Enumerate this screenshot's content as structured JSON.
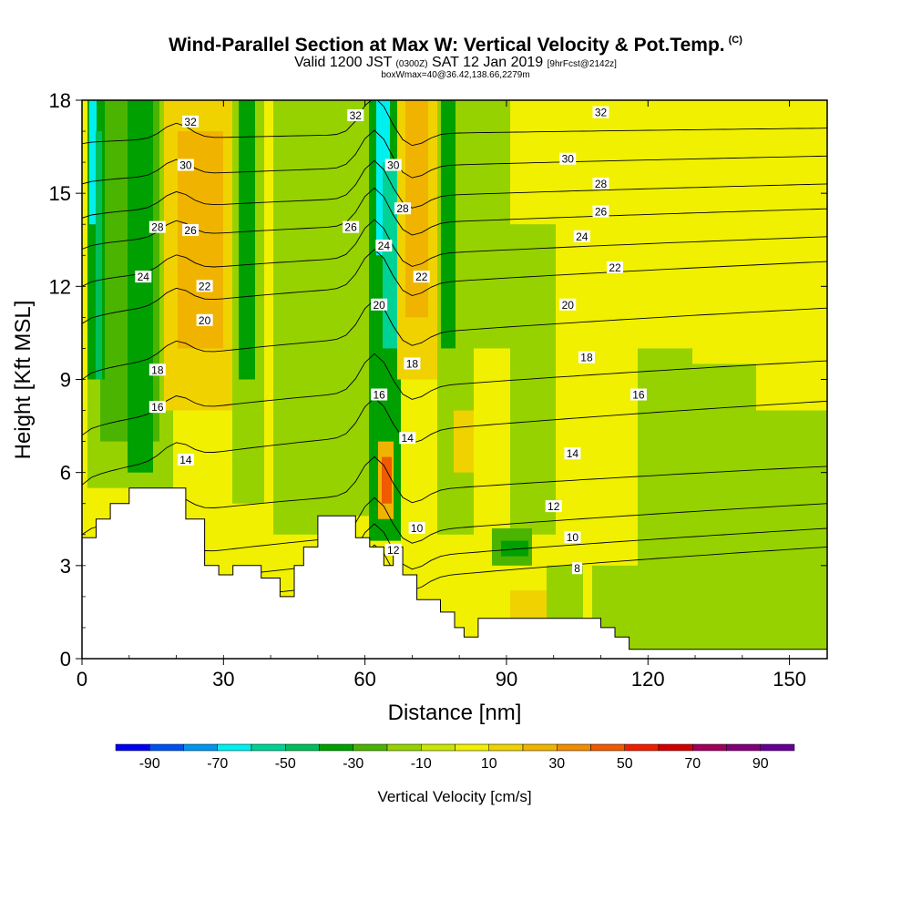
{
  "header": {
    "title": "Wind-Parallel Section at Max W: Vertical Velocity & Pot.Temp.",
    "copyright": "(C)",
    "valid_prefix": "Valid 1200 JST",
    "valid_zulu": "(0300Z)",
    "valid_date": "SAT 12 Jan 2019",
    "forecast": "[9hrFcst@2142z]",
    "box_info": "boxWmax=40@36.42,138.66,2279m"
  },
  "chart_data": {
    "type": "heatmap",
    "xlabel": "Distance [nm]",
    "ylabel": "Height [Kft MSL]",
    "xlim": [
      0,
      158
    ],
    "ylim": [
      0,
      18
    ],
    "x_ticks": [
      "0",
      "30",
      "60",
      "90",
      "120",
      "150"
    ],
    "y_ticks": [
      "0",
      "3",
      "6",
      "9",
      "12",
      "15",
      "18"
    ],
    "colorbar": {
      "title": "Vertical Velocity [cm/s]",
      "tick_labels": [
        "-90",
        "-70",
        "-50",
        "-30",
        "-10",
        "10",
        "30",
        "50",
        "70",
        "90"
      ],
      "colors": [
        "#0000f0",
        "#0050f0",
        "#0096f0",
        "#00f0f0",
        "#00d296",
        "#00be5a",
        "#00a000",
        "#4bb400",
        "#96d200",
        "#c8e600",
        "#f0f000",
        "#f0d200",
        "#f0b400",
        "#f08c00",
        "#f05a00",
        "#f01e00",
        "#d20000",
        "#a0005a",
        "#820078",
        "#640096"
      ]
    },
    "terrain": [
      [
        0,
        3.9
      ],
      [
        3,
        3.9
      ],
      [
        3,
        4.5
      ],
      [
        6,
        4.5
      ],
      [
        6,
        5.0
      ],
      [
        10,
        5.0
      ],
      [
        10,
        5.5
      ],
      [
        22,
        5.5
      ],
      [
        22,
        4.5
      ],
      [
        26,
        4.5
      ],
      [
        26,
        3.0
      ],
      [
        29,
        3.0
      ],
      [
        29,
        2.7
      ],
      [
        32,
        2.7
      ],
      [
        32,
        3.0
      ],
      [
        38,
        3.0
      ],
      [
        38,
        2.6
      ],
      [
        42,
        2.6
      ],
      [
        42,
        2.0
      ],
      [
        45,
        2.0
      ],
      [
        45,
        3.0
      ],
      [
        47,
        3.0
      ],
      [
        47,
        3.6
      ],
      [
        50,
        3.6
      ],
      [
        50,
        4.6
      ],
      [
        58,
        4.6
      ],
      [
        58,
        3.9
      ],
      [
        61,
        3.9
      ],
      [
        61,
        3.6
      ],
      [
        64,
        3.6
      ],
      [
        64,
        3.0
      ],
      [
        66,
        3.0
      ],
      [
        66,
        3.6
      ],
      [
        68,
        3.6
      ],
      [
        68,
        2.7
      ],
      [
        71,
        2.7
      ],
      [
        71,
        1.9
      ],
      [
        76,
        1.9
      ],
      [
        76,
        1.5
      ],
      [
        79,
        1.5
      ],
      [
        79,
        1.0
      ],
      [
        81,
        1.0
      ],
      [
        81,
        0.7
      ],
      [
        84,
        0.7
      ],
      [
        84,
        1.3
      ],
      [
        110,
        1.3
      ],
      [
        110,
        1.0
      ],
      [
        113,
        1.0
      ],
      [
        113,
        0.7
      ],
      [
        116,
        0.7
      ],
      [
        116,
        0.3
      ],
      [
        158,
        0.3
      ],
      [
        158,
        0
      ],
      [
        0,
        0
      ]
    ],
    "theta_contours": [
      {
        "value": "8",
        "y_start": 0.8,
        "y_end": 3.6
      },
      {
        "value": "10",
        "y_start": 1.6,
        "y_end": 4.2
      },
      {
        "value": "12",
        "y_start": 2.5,
        "y_end": 5.0
      },
      {
        "value": "14",
        "y_start": 4.0,
        "y_end": 6.2
      },
      {
        "value": "16",
        "y_start": 5.6,
        "y_end": 8.3
      },
      {
        "value": "18",
        "y_start": 7.2,
        "y_end": 9.6
      },
      {
        "value": "20",
        "y_start": 9.0,
        "y_end": 11.3
      },
      {
        "value": "22",
        "y_start": 10.8,
        "y_end": 12.8
      },
      {
        "value": "24",
        "y_start": 12.0,
        "y_end": 13.6
      },
      {
        "value": "26",
        "y_start": 13.2,
        "y_end": 14.5
      },
      {
        "value": "28",
        "y_start": 14.2,
        "y_end": 15.3
      },
      {
        "value": "30",
        "y_start": 15.3,
        "y_end": 16.2
      },
      {
        "value": "32",
        "y_start": 16.6,
        "y_end": 17.1
      }
    ],
    "contour_labels": [
      {
        "text": "32",
        "x": 23,
        "y": 17.3
      },
      {
        "text": "32",
        "x": 58,
        "y": 17.5
      },
      {
        "text": "32",
        "x": 110,
        "y": 17.6
      },
      {
        "text": "30",
        "x": 22,
        "y": 15.9
      },
      {
        "text": "30",
        "x": 66,
        "y": 15.9
      },
      {
        "text": "30",
        "x": 103,
        "y": 16.1
      },
      {
        "text": "28",
        "x": 16,
        "y": 13.9
      },
      {
        "text": "28",
        "x": 68,
        "y": 14.5
      },
      {
        "text": "28",
        "x": 110,
        "y": 15.3
      },
      {
        "text": "26",
        "x": 23,
        "y": 13.8
      },
      {
        "text": "26",
        "x": 57,
        "y": 13.9
      },
      {
        "text": "26",
        "x": 110,
        "y": 14.4
      },
      {
        "text": "24",
        "x": 13,
        "y": 12.3
      },
      {
        "text": "24",
        "x": 64,
        "y": 13.3
      },
      {
        "text": "24",
        "x": 106,
        "y": 13.6
      },
      {
        "text": "22",
        "x": 26,
        "y": 12.0
      },
      {
        "text": "22",
        "x": 72,
        "y": 12.3
      },
      {
        "text": "22",
        "x": 113,
        "y": 12.6
      },
      {
        "text": "20",
        "x": 26,
        "y": 10.9
      },
      {
        "text": "20",
        "x": 63,
        "y": 11.4
      },
      {
        "text": "20",
        "x": 103,
        "y": 11.4
      },
      {
        "text": "18",
        "x": 16,
        "y": 9.3
      },
      {
        "text": "18",
        "x": 70,
        "y": 9.5
      },
      {
        "text": "18",
        "x": 107,
        "y": 9.7
      },
      {
        "text": "16",
        "x": 16,
        "y": 8.1
      },
      {
        "text": "16",
        "x": 63,
        "y": 8.5
      },
      {
        "text": "16",
        "x": 118,
        "y": 8.5
      },
      {
        "text": "14",
        "x": 22,
        "y": 6.4
      },
      {
        "text": "14",
        "x": 69,
        "y": 7.1
      },
      {
        "text": "14",
        "x": 104,
        "y": 6.6
      },
      {
        "text": "12",
        "x": 66,
        "y": 3.5
      },
      {
        "text": "12",
        "x": 100,
        "y": 4.9
      },
      {
        "text": "10",
        "x": 71,
        "y": 4.2
      },
      {
        "text": "10",
        "x": 104,
        "y": 3.9
      },
      {
        "text": "8",
        "x": 105,
        "y": 2.9
      }
    ]
  }
}
